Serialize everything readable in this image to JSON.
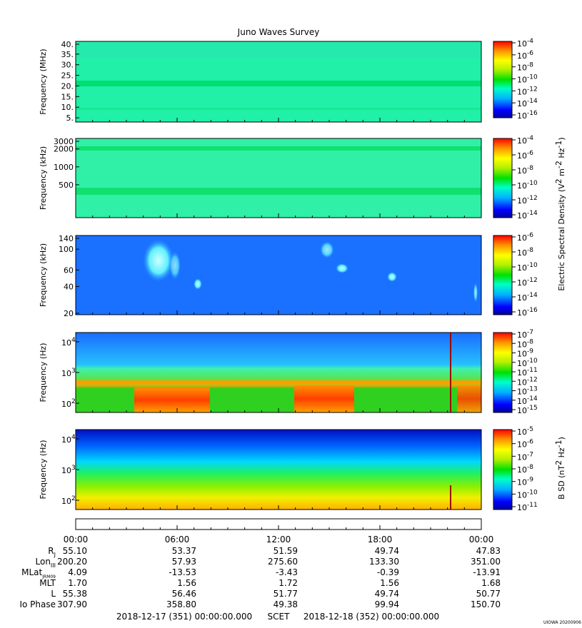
{
  "chart_data": {
    "type": "heatmap",
    "title": "Juno Waves Survey",
    "panels": [
      {
        "ylabel": "Frequency (MHz)",
        "yticks": [
          "40.",
          "35.",
          "30.",
          "25.",
          "20.",
          "15.",
          "10.",
          "5."
        ],
        "ylim": [
          3,
          41
        ],
        "scale": "linear",
        "colorbar_ticks": [
          "-4",
          "-6",
          "-8",
          "-10",
          "-12",
          "-14",
          "-16"
        ],
        "colorbar_base": "10"
      },
      {
        "ylabel": "Frequency (kHz)",
        "yticks": [
          "3000",
          "2000",
          "1000",
          "500"
        ],
        "ylim": [
          140,
          3000
        ],
        "scale": "log",
        "colorbar_ticks": [
          "-4",
          "-6",
          "-8",
          "-10",
          "-12",
          "-14"
        ],
        "colorbar_base": "10"
      },
      {
        "ylabel": "Frequency (kHz)",
        "yticks": [
          "140",
          "100",
          "60",
          "40",
          "20"
        ],
        "ylim": [
          20,
          140
        ],
        "scale": "log",
        "colorbar_ticks": [
          "-6",
          "-8",
          "-10",
          "-12",
          "-14",
          "-16"
        ],
        "colorbar_base": "10"
      },
      {
        "ylabel": "Frequency (Hz)",
        "yticks_base": "10",
        "yticks_exp": [
          "4",
          "3",
          "2"
        ],
        "ylim": [
          50,
          20000
        ],
        "scale": "log",
        "colorbar_ticks": [
          "-7",
          "-8",
          "-9",
          "-10",
          "-11",
          "-12",
          "-13",
          "-14",
          "-15"
        ],
        "colorbar_base": "10"
      },
      {
        "ylabel": "Frequency (Hz)",
        "yticks_base": "10",
        "yticks_exp": [
          "4",
          "3",
          "2"
        ],
        "ylim": [
          50,
          20000
        ],
        "scale": "log",
        "colorbar_ticks": [
          "-5",
          "-6",
          "-7",
          "-8",
          "-9",
          "-10",
          "-11"
        ],
        "colorbar_base": "10"
      }
    ],
    "colorbar_label_electric": "Electric Spectral Density (V",
    "colorbar_label_electric_mid": "2",
    "colorbar_label_electric_unit": " m",
    "colorbar_label_electric_end": ")",
    "colorbar_label_magnetic": "B SD (nT",
    "colorbar_label_magnetic_end": ")",
    "x_ticks": [
      "00:00",
      "06:00",
      "12:00",
      "18:00",
      "00:00"
    ],
    "ephemeris_rows": [
      {
        "label": "R",
        "sub": "J",
        "values": [
          "55.10",
          "53.37",
          "51.59",
          "49.74",
          "47.83"
        ]
      },
      {
        "label": "Lon",
        "sub": "III",
        "values": [
          "200.20",
          "57.93",
          "275.60",
          "133.30",
          "351.00"
        ]
      },
      {
        "label": "MLat",
        "sub": "JRM09",
        "values": [
          "4.09",
          "-13.53",
          "-3.43",
          "-0.39",
          "-13.91"
        ]
      },
      {
        "label": "MLT",
        "sub": "",
        "values": [
          "1.70",
          "1.56",
          "1.72",
          "1.56",
          "1.68"
        ]
      },
      {
        "label": "L",
        "sub": "",
        "values": [
          "55.38",
          "56.46",
          "51.77",
          "49.74",
          "50.77"
        ]
      },
      {
        "label": "Io Phase",
        "sub": "",
        "values": [
          "307.90",
          "358.80",
          "49.38",
          "99.94",
          "150.70"
        ]
      }
    ],
    "time_start": "2018-12-17 (351) 00:00:00.000",
    "scet_label": "SCET",
    "time_end": "2018-12-18 (352) 00:00:00.000",
    "stamp": "UIOWA 20200906"
  }
}
